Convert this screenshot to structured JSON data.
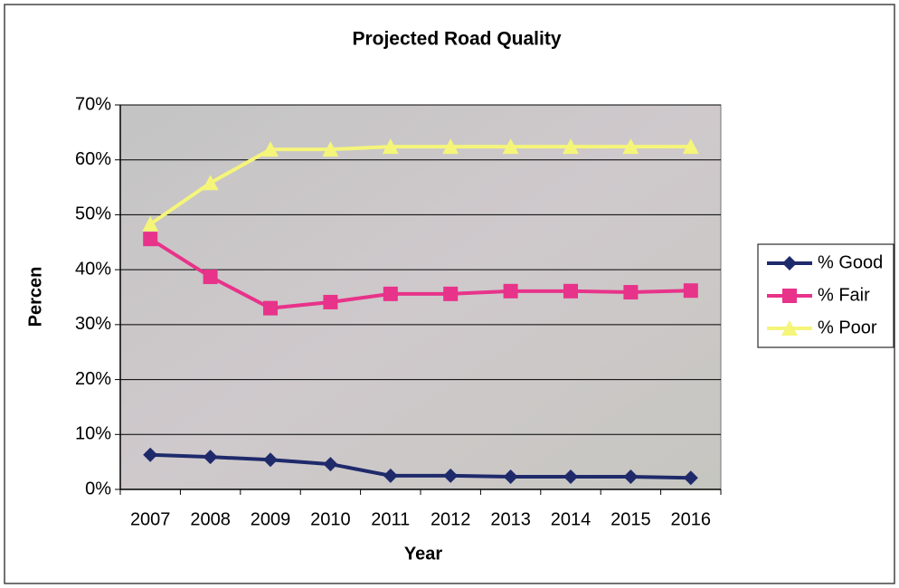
{
  "chart_data": {
    "type": "line",
    "title": "Projected Road Quality",
    "x_label": "Year",
    "y_label": "Percen",
    "categories": [
      "2007",
      "2008",
      "2009",
      "2010",
      "2011",
      "2012",
      "2013",
      "2014",
      "2015",
      "2016"
    ],
    "series": [
      {
        "name": "% Good",
        "color": "#1f2a6b",
        "marker": "diamond",
        "values": [
          6.3,
          5.9,
          5.4,
          4.6,
          2.5,
          2.5,
          2.3,
          2.3,
          2.3,
          2.1
        ]
      },
      {
        "name": "% Fair",
        "color": "#e8338a",
        "marker": "square",
        "values": [
          45.6,
          38.7,
          33,
          34.1,
          35.6,
          35.6,
          36.1,
          36.1,
          35.9,
          36.2
        ]
      },
      {
        "name": "% Poor",
        "color": "#f5f57a",
        "marker": "triangle",
        "values": [
          48.3,
          55.8,
          61.9,
          61.9,
          62.4,
          62.4,
          62.4,
          62.4,
          62.4,
          62.4
        ]
      }
    ],
    "ylim": [
      0,
      70
    ],
    "yticks": [
      {
        "value": 0,
        "label": "0%"
      },
      {
        "value": 10,
        "label": "10%"
      },
      {
        "value": 20,
        "label": "20%"
      },
      {
        "value": 30,
        "label": "30%"
      },
      {
        "value": 40,
        "label": "40%"
      },
      {
        "value": 50,
        "label": "50%"
      },
      {
        "value": 60,
        "label": "60%"
      },
      {
        "value": 70,
        "label": "70%"
      }
    ],
    "grid": true,
    "legend": "right"
  }
}
